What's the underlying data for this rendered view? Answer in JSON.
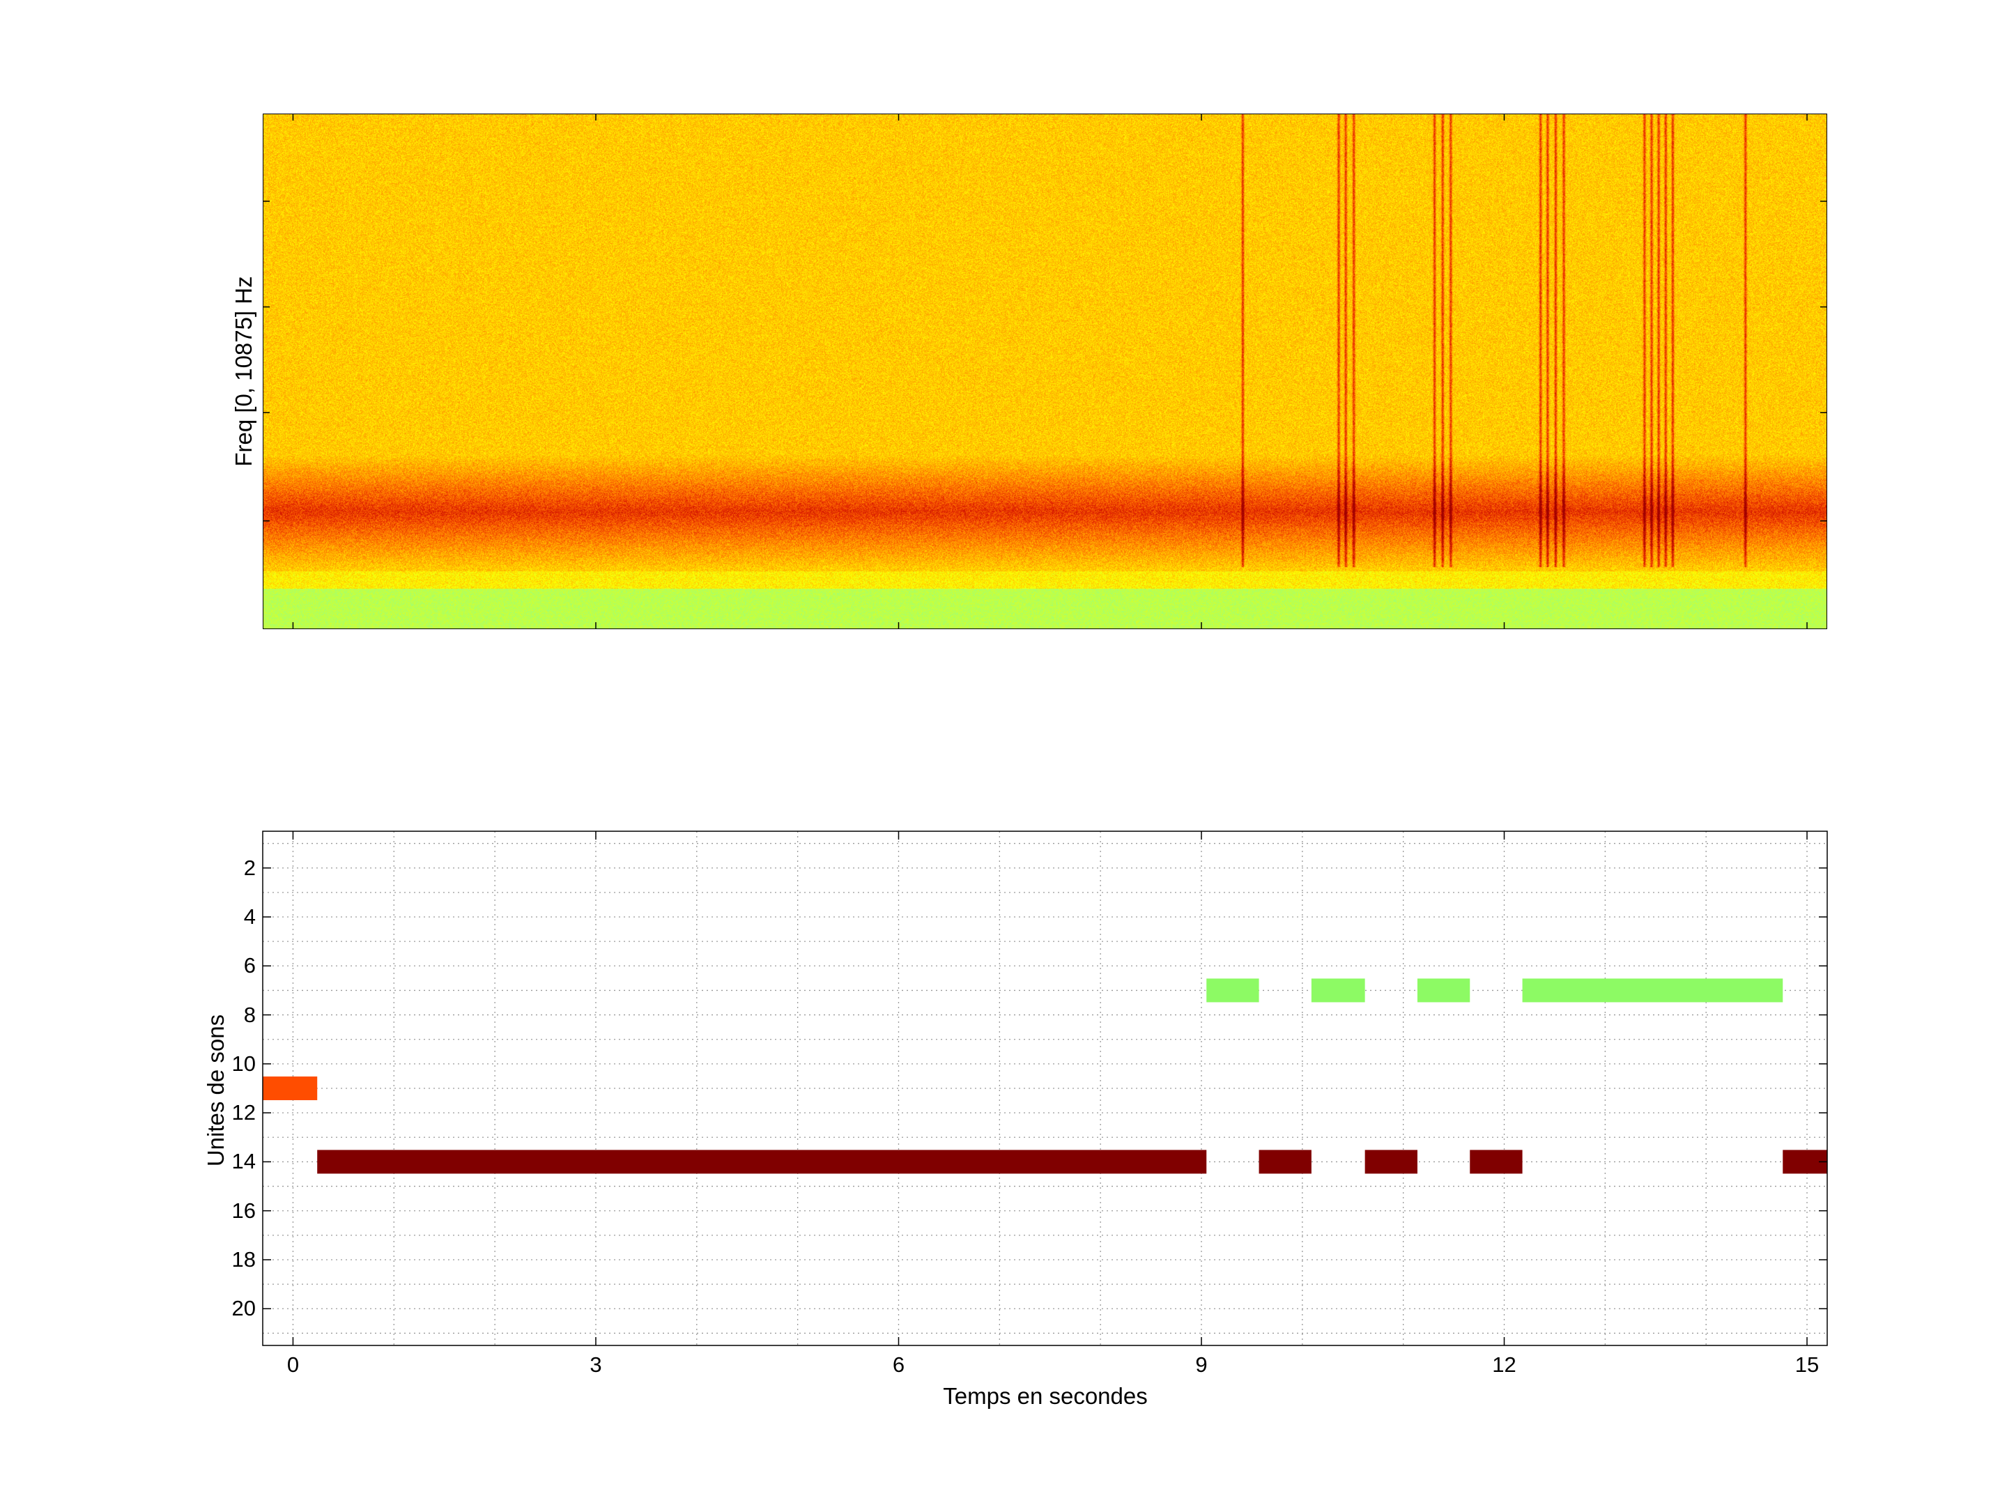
{
  "chart_data": [
    {
      "type": "heatmap",
      "title": "",
      "ylabel": "Freq [0, 10875] Hz",
      "xlabel": "",
      "xlim": [
        -0.3,
        15.2
      ],
      "ylim": [
        0,
        10875
      ],
      "colormap": [
        "#7fffa0",
        "#c8ff3c",
        "#ffff00",
        "#ffc000",
        "#ff7000",
        "#e02000",
        "#a00000"
      ],
      "vertical_clicks_s": [
        9.4,
        10.35,
        10.42,
        10.5,
        11.3,
        11.38,
        11.46,
        12.35,
        12.42,
        12.5,
        12.58,
        13.38,
        13.45,
        13.52,
        13.59,
        13.66,
        14.38
      ],
      "band_hz": [
        2000,
        3000
      ]
    },
    {
      "type": "bar",
      "orientation": "horizontal-segments",
      "title": "",
      "xlabel": "Temps en secondes",
      "ylabel": "Unites de sons",
      "xlim": [
        -0.3,
        15.2
      ],
      "ylim": [
        21.5,
        0.5
      ],
      "xticks": [
        "0",
        "3",
        "6",
        "9",
        "12",
        "15"
      ],
      "xtick_values": [
        0,
        3,
        6,
        9,
        12,
        15
      ],
      "yticks": [
        "2",
        "4",
        "6",
        "8",
        "10",
        "12",
        "14",
        "16",
        "18",
        "20"
      ],
      "ytick_values": [
        2,
        4,
        6,
        8,
        10,
        12,
        14,
        16,
        18,
        20
      ],
      "grid": true,
      "segments": [
        {
          "unit": 11,
          "start": -0.3,
          "end": 0.24,
          "color": "#ff4d00"
        },
        {
          "unit": 14,
          "start": 0.24,
          "end": 9.05,
          "color": "#800000"
        },
        {
          "unit": 14,
          "start": 9.57,
          "end": 10.09,
          "color": "#800000"
        },
        {
          "unit": 14,
          "start": 10.62,
          "end": 11.14,
          "color": "#800000"
        },
        {
          "unit": 14,
          "start": 11.66,
          "end": 12.18,
          "color": "#800000"
        },
        {
          "unit": 14,
          "start": 14.76,
          "end": 15.2,
          "color": "#800000"
        },
        {
          "unit": 7,
          "start": 9.05,
          "end": 9.57,
          "color": "#8dfa64"
        },
        {
          "unit": 7,
          "start": 10.09,
          "end": 10.62,
          "color": "#8dfa64"
        },
        {
          "unit": 7,
          "start": 11.14,
          "end": 11.66,
          "color": "#8dfa64"
        },
        {
          "unit": 7,
          "start": 12.18,
          "end": 14.76,
          "color": "#8dfa64"
        }
      ]
    }
  ]
}
